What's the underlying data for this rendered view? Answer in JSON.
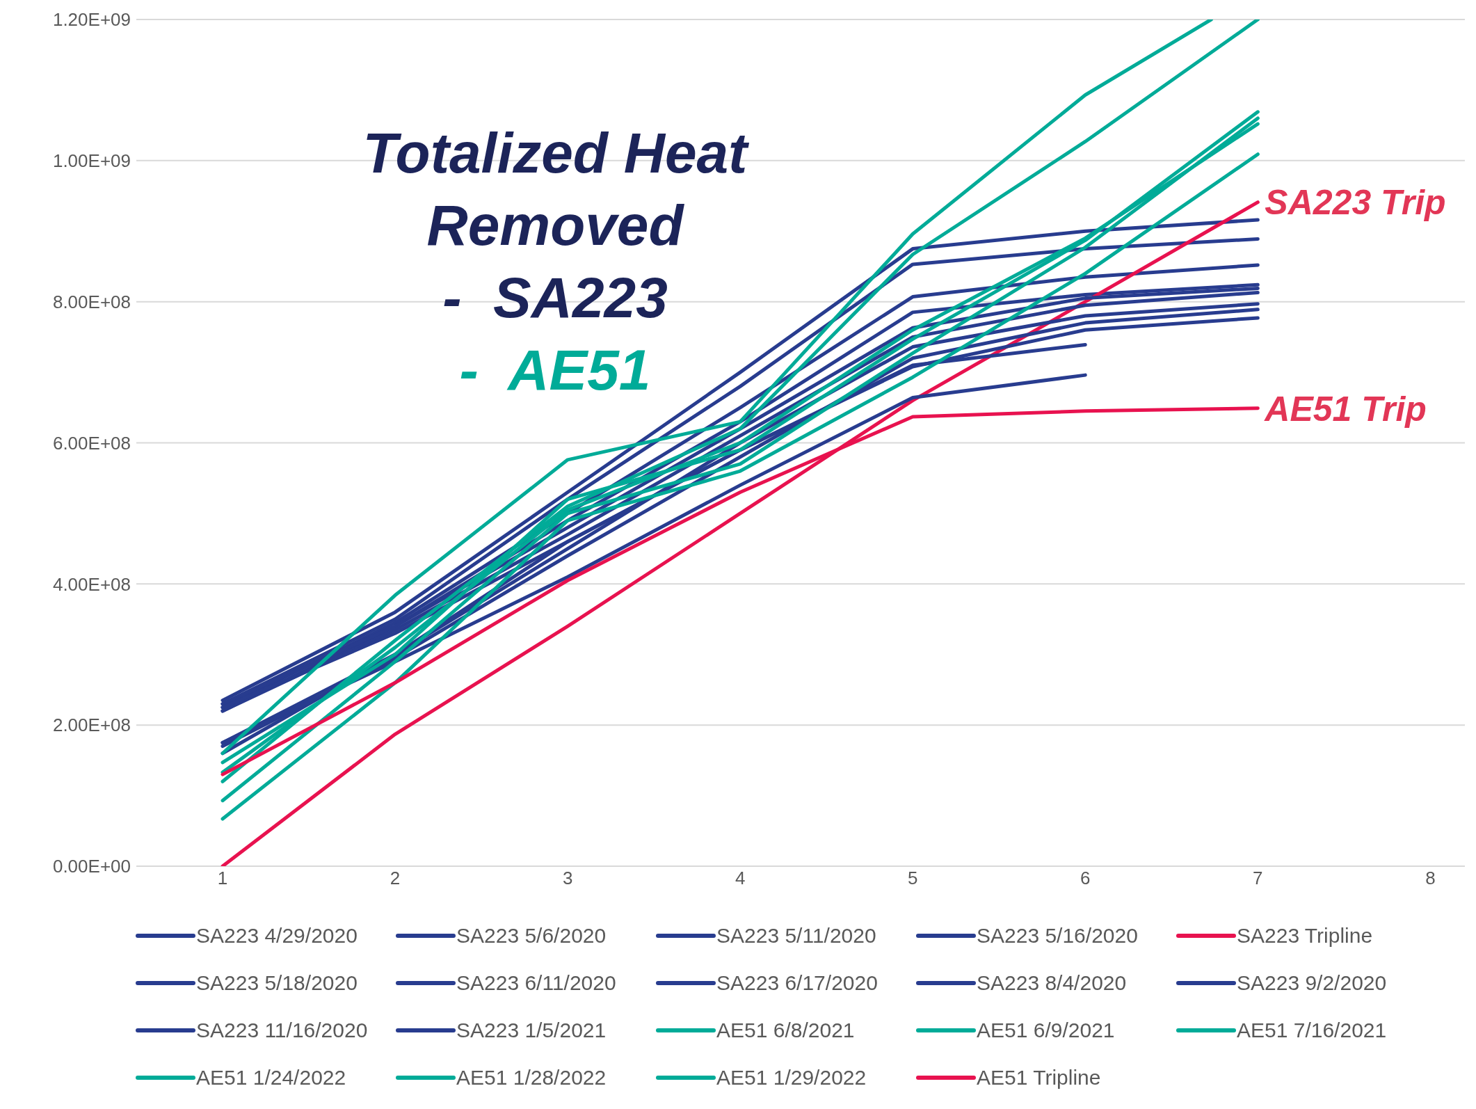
{
  "chart_data": {
    "type": "line",
    "title": "Totalized Heat Removed",
    "annotations": [
      "-  SA223",
      "-  AE51",
      {
        "text": "SA223 Trip",
        "x": 7,
        "y": 941000000
      },
      {
        "text": "AE51 Trip",
        "x": 7,
        "y": 649000000
      }
    ],
    "x": [
      1,
      2,
      3,
      4,
      5,
      6,
      7
    ],
    "xlim": [
      0.5,
      8.2
    ],
    "xticks": [
      1,
      2,
      3,
      4,
      5,
      6,
      7,
      8
    ],
    "ylim": [
      0,
      1200000000
    ],
    "yticks": [
      {
        "value": 0,
        "label": "0.00E+00"
      },
      {
        "value": 200000000,
        "label": "2.00E+08"
      },
      {
        "value": 400000000,
        "label": "4.00E+08"
      },
      {
        "value": 600000000,
        "label": "6.00E+08"
      },
      {
        "value": 800000000,
        "label": "8.00E+08"
      },
      {
        "value": 1000000000,
        "label": "1.00E+09"
      },
      {
        "value": 1200000000,
        "label": "1.20E+09"
      }
    ],
    "grid": "y",
    "legend": "bottom",
    "marker": "none",
    "line_style": "solid",
    "series": [
      {
        "name": "SA223 4/29/2020",
        "color": "#283c8f",
        "values": [
          235000000,
          360000000,
          530000000,
          700000000,
          875000000,
          900000000,
          916000000
        ]
      },
      {
        "name": "SA223 5/6/2020",
        "color": "#283c8f",
        "values": [
          230000000,
          350000000,
          520000000,
          680000000,
          853000000,
          875000000,
          889000000
        ]
      },
      {
        "name": "SA223 5/11/2020",
        "color": "#283c8f",
        "values": [
          225000000,
          345000000,
          500000000,
          650000000,
          807000000,
          835000000,
          852000000
        ]
      },
      {
        "name": "SA223 5/16/2020",
        "color": "#283c8f",
        "values": [
          220000000,
          340000000,
          490000000,
          630000000,
          785000000,
          810000000,
          824000000
        ]
      },
      {
        "name": "SA223 Tripline",
        "color": "#e8124f",
        "values": [
          0,
          187000000,
          340000000,
          500000000,
          660000000,
          800000000,
          941000000
        ]
      },
      {
        "name": "SA223 5/18/2020",
        "color": "#283c8f",
        "values": [
          230000000,
          340000000,
          480000000,
          620000000,
          763000000,
          805000000,
          819000000
        ]
      },
      {
        "name": "SA223 6/11/2020",
        "color": "#283c8f",
        "values": [
          220000000,
          335000000,
          470000000,
          610000000,
          750000000,
          795000000,
          813000000
        ]
      },
      {
        "name": "SA223 6/17/2020",
        "color": "#283c8f",
        "values": [
          175000000,
          300000000,
          450000000,
          600000000,
          736000000,
          780000000,
          797000000
        ]
      },
      {
        "name": "SA223 8/4/2020",
        "color": "#283c8f",
        "values": [
          170000000,
          295000000,
          440000000,
          580000000,
          720000000,
          770000000,
          789000000
        ]
      },
      {
        "name": "SA223 9/2/2020",
        "color": "#283c8f",
        "values": [
          225000000,
          330000000,
          460000000,
          590000000,
          708000000,
          760000000,
          777000000
        ]
      },
      {
        "name": "SA223 11/16/2020",
        "color": "#283c8f",
        "values": [
          160000000,
          300000000,
          460000000,
          590000000,
          710000000,
          739000000,
          null
        ]
      },
      {
        "name": "SA223 1/5/2021",
        "color": "#283c8f",
        "values": [
          175000000,
          290000000,
          410000000,
          540000000,
          664000000,
          696000000,
          null
        ]
      },
      {
        "name": "AE51 6/8/2021",
        "color": "#00ab98",
        "x": [
          1,
          2,
          3,
          4,
          5,
          6,
          6.73
        ],
        "values": [
          160000000,
          384000000,
          576000000,
          630000000,
          896000000,
          1093000000,
          1200000000
        ]
      },
      {
        "name": "AE51 6/9/2021",
        "color": "#00ab98",
        "values": [
          120000000,
          320000000,
          510000000,
          620000000,
          867000000,
          1027000000,
          1200000000
        ]
      },
      {
        "name": "AE51 7/16/2021",
        "color": "#00ab98",
        "values": [
          147000000,
          300000000,
          520000000,
          590000000,
          747000000,
          887000000,
          1069000000
        ]
      },
      {
        "name": "AE51 1/24/2022",
        "color": "#00ab98",
        "values": [
          93000000,
          290000000,
          500000000,
          570000000,
          727000000,
          877000000,
          1060000000
        ]
      },
      {
        "name": "AE51 1/28/2022",
        "color": "#00ab98",
        "values": [
          67000000,
          260000000,
          490000000,
          560000000,
          693000000,
          840000000,
          1009000000
        ]
      },
      {
        "name": "AE51 1/29/2022",
        "color": "#00ab98",
        "values": [
          133000000,
          310000000,
          505000000,
          600000000,
          760000000,
          890000000,
          1052000000
        ]
      },
      {
        "name": "AE51 Tripline",
        "color": "#e8124f",
        "values": [
          130000000,
          260000000,
          405000000,
          530000000,
          637000000,
          645000000,
          649000000
        ]
      }
    ]
  }
}
